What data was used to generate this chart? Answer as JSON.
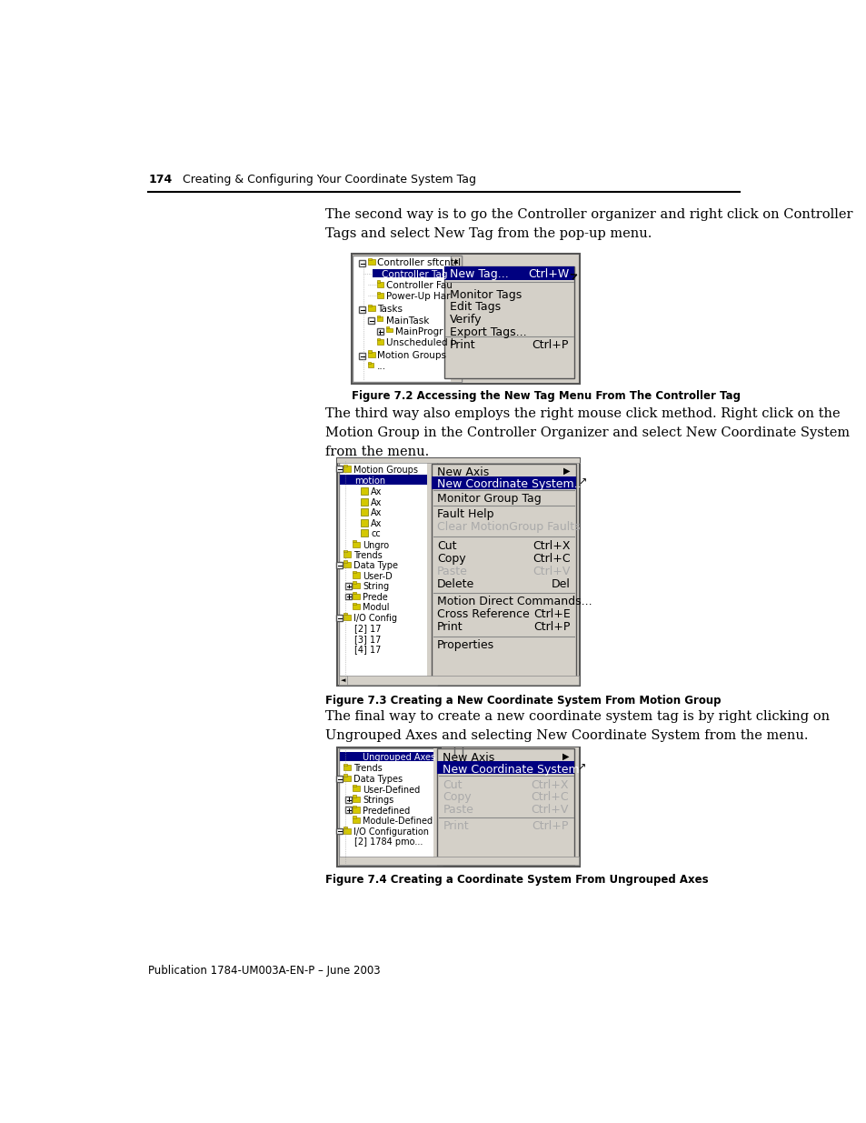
{
  "page_number": "174",
  "header_text": "Creating & Configuring Your Coordinate System Tag",
  "footer_text": "Publication 1784-UM003A-EN-P – June 2003",
  "body_text_1": "The second way is to go the Controller organizer and right click on Controller\nTags and select New Tag from the pop-up menu.",
  "figure_caption_1": "Figure 7.2 Accessing the New Tag Menu From The Controller Tag",
  "body_text_2": "The third way also employs the right mouse click method. Right click on the\nMotion Group in the Controller Organizer and select New Coordinate System\nfrom the menu.",
  "figure_caption_2": "Figure 7.3 Creating a New Coordinate System From Motion Group",
  "body_text_3": "The final way to create a new coordinate system tag is by right clicking on\nUngrouped Axes and selecting New Coordinate System from the menu.",
  "figure_caption_3": "Figure 7.4 Creating a Coordinate System From Ungrouped Axes",
  "bg_color": "#ffffff",
  "text_color": "#000000",
  "folder_color": "#d4c800",
  "selected_color": "#000080",
  "menu_bg": "#d4d0c8",
  "tree_bg": "#ffffff"
}
